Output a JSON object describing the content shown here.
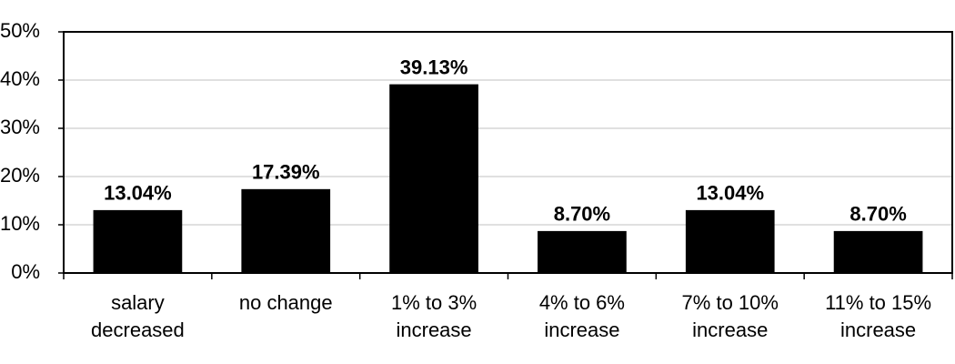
{
  "chart_data": {
    "type": "bar",
    "categories": [
      "salary decreased",
      "no change",
      "1% to 3% increase",
      "4% to 6% increase",
      "7% to 10% increase",
      "11% to 15% increase"
    ],
    "values": [
      13.04,
      17.39,
      39.13,
      8.7,
      13.04,
      8.7
    ],
    "value_labels": [
      "13.04%",
      "17.39%",
      "39.13%",
      "8.70%",
      "13.04%",
      "8.70%"
    ],
    "color": "#000000",
    "ylim": [
      0,
      50
    ],
    "yticks": [
      {
        "value": 0,
        "label": "0%"
      },
      {
        "value": 10,
        "label": "10%"
      },
      {
        "value": 20,
        "label": "20%"
      },
      {
        "value": 30,
        "label": "30%"
      },
      {
        "value": 40,
        "label": "40%"
      },
      {
        "value": 50,
        "label": "50%"
      }
    ],
    "grid": true
  }
}
